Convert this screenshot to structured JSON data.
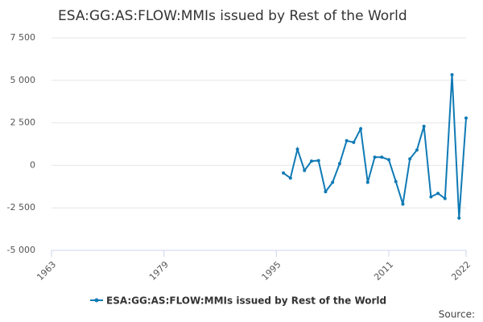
{
  "chart_data": {
    "type": "line",
    "title": "ESA:GG:AS:FLOW:MMIs issued by Rest of the World",
    "x": [
      1996,
      1997,
      1998,
      1999,
      2000,
      2001,
      2002,
      2003,
      2004,
      2005,
      2006,
      2007,
      2008,
      2009,
      2010,
      2011,
      2012,
      2013,
      2014,
      2015,
      2016,
      2017,
      2018,
      2019,
      2020,
      2021,
      2022
    ],
    "series": [
      {
        "name": "ESA:GG:AS:FLOW:MMIs issued by Rest of the World",
        "color": "#0f7ab5",
        "values": [
          -450,
          -750,
          950,
          -300,
          250,
          280,
          -1550,
          -1000,
          100,
          1450,
          1350,
          2150,
          -1000,
          480,
          480,
          330,
          -950,
          -2280,
          380,
          900,
          2300,
          -1850,
          -1650,
          -1950,
          5330,
          -3100,
          2780
        ]
      }
    ],
    "xlim": [
      1963,
      2022
    ],
    "xticks": [
      1963,
      1979,
      1995,
      2011,
      2022
    ],
    "ylim": [
      -5000,
      7500
    ],
    "yticks": [
      {
        "value": -5000,
        "label": "-5 000"
      },
      {
        "value": -2500,
        "label": "-2 500"
      },
      0,
      {
        "value": 2500,
        "label": "2 500"
      },
      {
        "value": 5000,
        "label": "5 000"
      },
      {
        "value": 7500,
        "label": "7 500"
      }
    ],
    "grid": true,
    "source": "Source:"
  }
}
